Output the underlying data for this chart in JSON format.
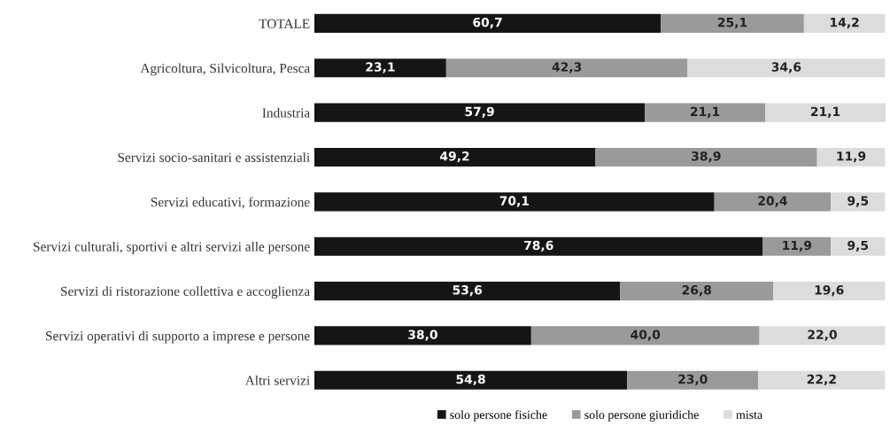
{
  "chart_data": {
    "type": "bar",
    "orientation": "horizontal",
    "stacked": true,
    "legend": "bottom",
    "grid": false,
    "tick_labels": "y",
    "categories": [
      "TOTALE",
      "Agricoltura, Silvicoltura, Pesca",
      "Industria",
      "Servizi socio-sanitari e assistenziali",
      "Servizi educativi, formazione",
      "Servizi culturali, sportivi e altri servizi alle persone",
      "Servizi di ristorazione collettiva e accoglienza",
      "Servizi operativi di supporto a imprese e persone",
      "Altri servizi"
    ],
    "series": [
      {
        "name": "solo persone fisiche",
        "color": "#151515",
        "values": [
          60.7,
          23.1,
          57.9,
          49.2,
          70.1,
          78.6,
          53.6,
          38.0,
          54.8
        ],
        "value_labels": [
          "60,7",
          "23,1",
          "57,9",
          "49,2",
          "70,1",
          "78,6",
          "53,6",
          "38,0",
          "54,8"
        ]
      },
      {
        "name": "solo persone giuridiche",
        "color": "#9a9a9a",
        "values": [
          25.1,
          42.3,
          21.1,
          38.9,
          20.4,
          11.9,
          26.8,
          40.0,
          23.0
        ],
        "value_labels": [
          "25,1",
          "42,3",
          "21,1",
          "38,9",
          "20,4",
          "11,9",
          "26,8",
          "40,0",
          "23,0"
        ]
      },
      {
        "name": "mista",
        "color": "#dcdcdc",
        "values": [
          14.2,
          34.6,
          21.1,
          11.9,
          9.5,
          9.5,
          19.6,
          22.0,
          22.2
        ],
        "value_labels": [
          "14,2",
          "34,6",
          "21,1",
          "11,9",
          "9,5",
          "9,5",
          "19,6",
          "22,0",
          "22,2"
        ]
      }
    ]
  }
}
